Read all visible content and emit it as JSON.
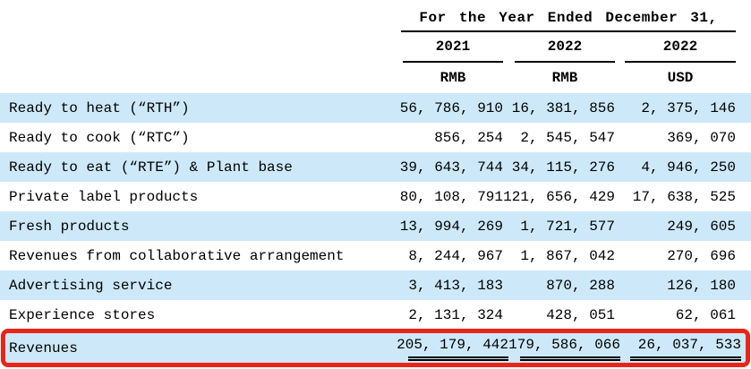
{
  "table": {
    "header": {
      "title": "For the Year Ended December 31,",
      "columns": [
        {
          "year": "2021",
          "currency": "RMB"
        },
        {
          "year": "2022",
          "currency": "RMB"
        },
        {
          "year": "2022",
          "currency": "USD"
        }
      ]
    },
    "rows": [
      {
        "label": "Ready to heat (“RTH”)",
        "values": [
          "56, 786, 910",
          "16, 381, 856",
          "2, 375, 146"
        ]
      },
      {
        "label": "Ready to cook (“RTC”)",
        "values": [
          "856, 254",
          "2, 545, 547",
          "369, 070"
        ]
      },
      {
        "label": "Ready to eat (“RTE”) & Plant base",
        "values": [
          "39, 643, 744",
          "34, 115, 276",
          "4, 946, 250"
        ]
      },
      {
        "label": "Private label products",
        "values": [
          "80, 108, 791",
          "121, 656, 429",
          "17, 638, 525"
        ]
      },
      {
        "label": "Fresh products",
        "values": [
          "13, 994, 269",
          "1, 721, 577",
          "249, 605"
        ]
      },
      {
        "label": "Revenues from collaborative arrangement",
        "values": [
          "8, 244, 967",
          "1, 867, 042",
          "270, 696"
        ]
      },
      {
        "label": "Advertising service",
        "values": [
          "3, 413, 183",
          "870, 288",
          "126, 180"
        ]
      },
      {
        "label": "Experience stores",
        "values": [
          "2, 131, 324",
          "428, 051",
          "62, 061"
        ]
      }
    ],
    "total_row": {
      "label": "Revenues",
      "values": [
        "205, 179, 442",
        "179, 586, 066",
        "26, 037, 533"
      ]
    }
  },
  "colors": {
    "row_highlight": "#cde9f9",
    "annotation_red": "#ea2517"
  }
}
